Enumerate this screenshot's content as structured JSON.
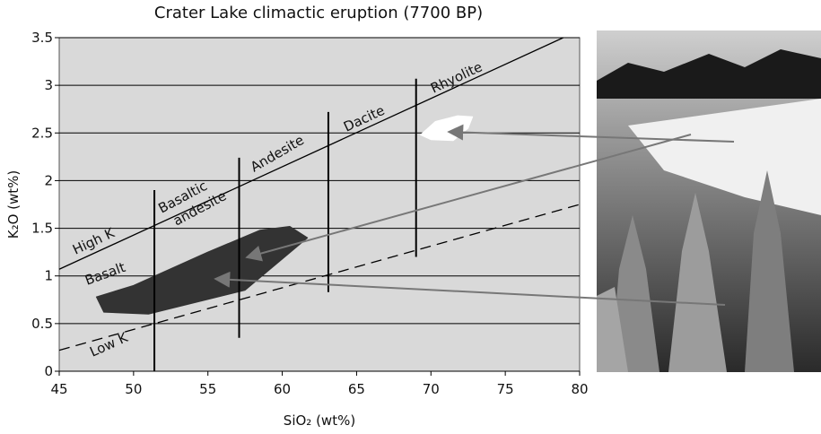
{
  "chart_data": {
    "type": "line",
    "title": "Crater Lake climactic eruption (7700 BP)",
    "x_label": "SiO₂ (wt%)",
    "y_label": "K₂O (wt%)",
    "xlim": [
      45,
      80
    ],
    "ylim": [
      0,
      3.5
    ],
    "xticks": [
      45,
      50,
      55,
      60,
      65,
      70,
      75,
      80
    ],
    "yticks": [
      0,
      0.5,
      1,
      1.5,
      2,
      2.5,
      3,
      3.5
    ],
    "grid": true,
    "boundaries": [
      {
        "label": "High K",
        "style": "solid",
        "x": [
          45,
          78.9
        ],
        "y": [
          1.07,
          3.5
        ]
      },
      {
        "label": "Low K",
        "style": "dashed",
        "x": [
          45,
          80
        ],
        "y": [
          0.22,
          1.75
        ]
      }
    ],
    "dividers": [
      {
        "x": [
          51.4,
          51.4
        ],
        "y": [
          0,
          1.9
        ]
      },
      {
        "x": [
          57.1,
          57.1
        ],
        "y": [
          0.35,
          2.24
        ]
      },
      {
        "x": [
          63.1,
          63.1
        ],
        "y": [
          0.83,
          2.72
        ]
      },
      {
        "x": [
          69,
          69
        ],
        "y": [
          1.2,
          3.07
        ]
      }
    ],
    "field_labels": [
      "Basalt",
      "Basaltic andesite",
      "Andesite",
      "Dacite",
      "Rhyolite"
    ],
    "regions": [
      {
        "color": "#333333",
        "x": [
          47.5,
          48,
          51,
          57.5,
          61.7,
          60.5,
          58.5,
          55,
          50
        ],
        "y": [
          0.78,
          0.62,
          0.6,
          0.85,
          1.4,
          1.52,
          1.48,
          1.25,
          0.9
        ]
      },
      {
        "color": "#ffffff",
        "x": [
          69.3,
          70,
          71.5,
          72.5,
          72.8,
          71.8,
          70.3
        ],
        "y": [
          2.48,
          2.43,
          2.42,
          2.55,
          2.67,
          2.68,
          2.62
        ]
      }
    ]
  }
}
